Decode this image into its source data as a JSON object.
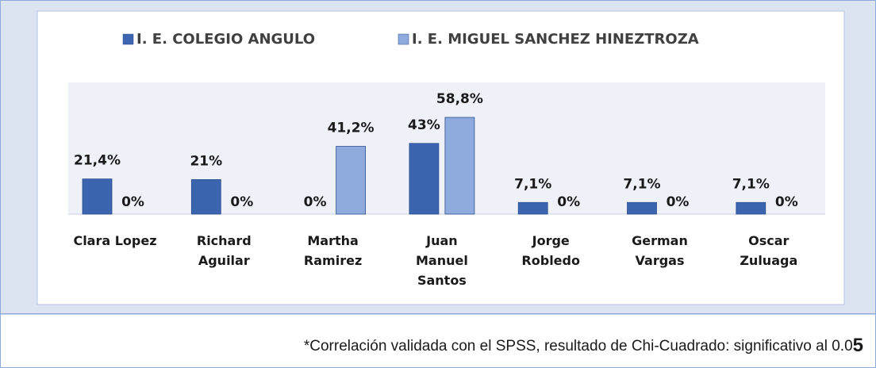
{
  "chart_data": {
    "type": "bar",
    "categories": [
      "Clara Lopez",
      "Richard\nAguilar",
      "Martha\nRamirez",
      "Juan\nManuel\nSantos",
      "Jorge\nRobledo",
      "German\nVargas",
      "Oscar\nZuluaga"
    ],
    "series": [
      {
        "name": "I. E. COLEGIO ANGULO",
        "color": "#3c65b0",
        "values": [
          21.4,
          21,
          0,
          43,
          7.1,
          7.1,
          7.1
        ],
        "value_labels": [
          "21,4%",
          "21%",
          "0%",
          "43%",
          "7,1%",
          "7,1%",
          "7,1%"
        ]
      },
      {
        "name": "I. E. MIGUEL SANCHEZ HINEZTROZA",
        "color": "#8faadc",
        "values": [
          0,
          0,
          41.2,
          58.8,
          0,
          0,
          0
        ],
        "value_labels": [
          "0%",
          "0%",
          "41,2%",
          "58,8%",
          "0%",
          "0%",
          "0%"
        ]
      }
    ],
    "ylim": [
      0,
      80
    ],
    "footnote": "*Correlación validada con el SPSS, resultado de Chi-Cuadrado: significativo al 0.0",
    "footnote_emphasis": "5"
  }
}
